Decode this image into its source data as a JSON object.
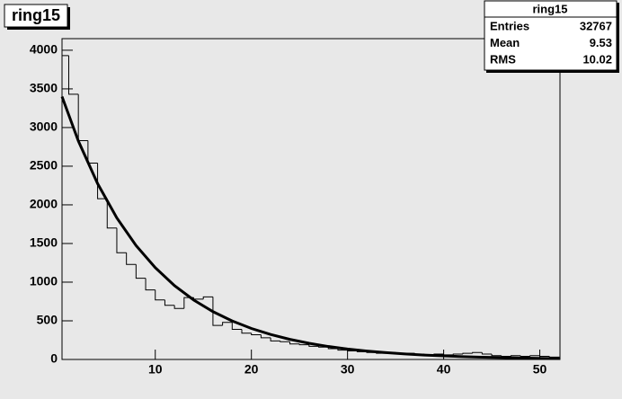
{
  "chart_data": {
    "type": "histogram",
    "title": "ring15",
    "bins": [
      0.3,
      1,
      2,
      3,
      4,
      5,
      6,
      7,
      8,
      9,
      10,
      11,
      12,
      13,
      14,
      15,
      16,
      17,
      18,
      19,
      20,
      21,
      22,
      23,
      24,
      25,
      26,
      27,
      28,
      29,
      30,
      31,
      32,
      33,
      34,
      35,
      36,
      37,
      38,
      39,
      40,
      41,
      42,
      43,
      44,
      45,
      46,
      47,
      48,
      49,
      50,
      51,
      52
    ],
    "counts": [
      3930,
      3430,
      2830,
      2540,
      2080,
      1700,
      1380,
      1230,
      1050,
      900,
      770,
      700,
      660,
      800,
      780,
      810,
      440,
      480,
      390,
      340,
      320,
      280,
      240,
      230,
      200,
      190,
      170,
      160,
      140,
      120,
      110,
      100,
      90,
      80,
      90,
      70,
      80,
      70,
      60,
      70,
      60,
      70,
      80,
      90,
      70,
      50,
      40,
      50,
      40,
      50,
      40,
      30
    ],
    "color": "#000000",
    "fit": {
      "color": "#000000",
      "x": [
        0.3,
        2,
        4,
        6,
        8,
        10,
        12,
        14,
        16,
        18,
        20,
        22,
        24,
        26,
        28,
        30,
        32,
        34,
        36,
        38,
        40,
        42,
        44,
        46,
        48,
        50,
        52
      ],
      "y": [
        3400,
        2826,
        2275,
        1831,
        1474,
        1187,
        955,
        769,
        619,
        498,
        401,
        323,
        260,
        209,
        168,
        135,
        109,
        88,
        71,
        57,
        46,
        36,
        29,
        24,
        19,
        15,
        12
      ]
    },
    "xlim": [
      0.3,
      52.1
    ],
    "ylim": [
      0,
      4150
    ],
    "xticks": [
      10,
      20,
      30,
      40,
      50
    ],
    "yticks": [
      0,
      500,
      1000,
      1500,
      2000,
      2500,
      3000,
      3500,
      4000
    ],
    "stats": {
      "title": "ring15",
      "rows": [
        [
          "Entries",
          32767
        ],
        [
          "Mean",
          9.53
        ],
        [
          "RMS",
          10.02
        ]
      ]
    }
  }
}
